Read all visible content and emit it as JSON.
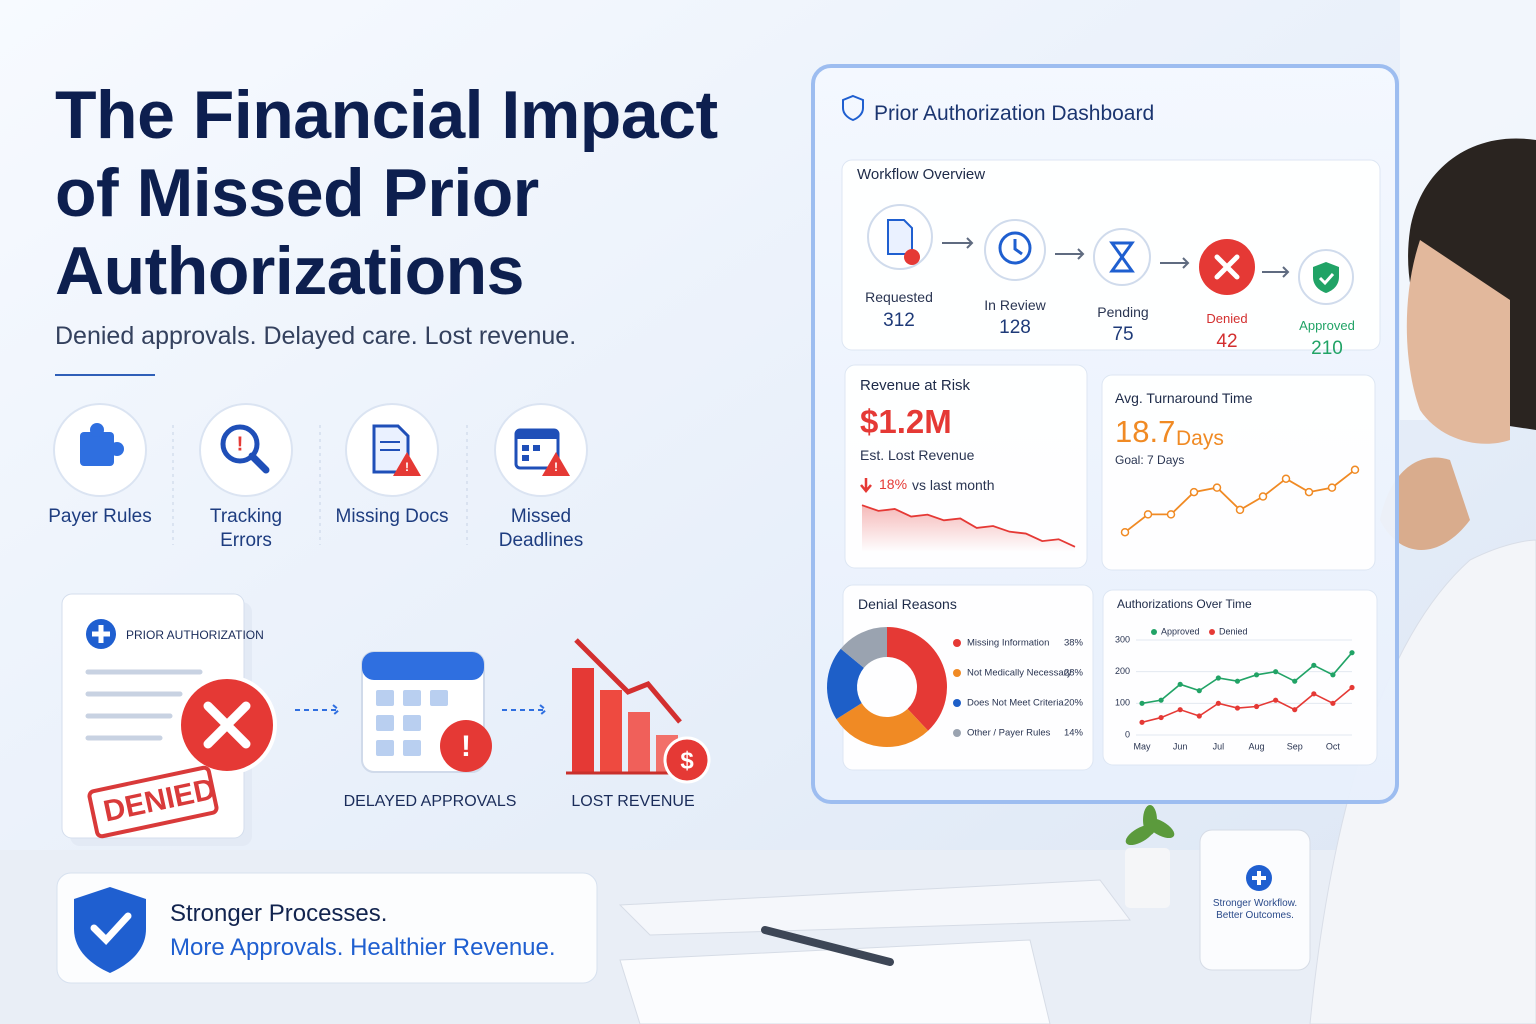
{
  "header": {
    "title": "The Financial Impact of Missed Prior Authorizations",
    "subtitle": "Denied approvals. Delayed care. Lost revenue."
  },
  "causes": [
    "Payer Rules",
    "Tracking Errors",
    "Missing Docs",
    "Missed Deadlines"
  ],
  "flow": {
    "document_title": "PRIOR AUTHORIZATION",
    "stamp": "DENIED",
    "steps": [
      "DELAYED APPROVALS",
      "LOST REVENUE"
    ]
  },
  "footer": {
    "line1": "Stronger Processes.",
    "line2": "More Approvals. Healthier Revenue."
  },
  "dashboard": {
    "title": "Prior Authorization Dashboard",
    "workflow_title": "Workflow Overview",
    "workflow": [
      {
        "label": "Requested",
        "value": 312
      },
      {
        "label": "In Review",
        "value": 128
      },
      {
        "label": "Pending",
        "value": 75
      },
      {
        "label": "Denied",
        "value": 42
      },
      {
        "label": "Approved",
        "value": 210
      }
    ],
    "revenue": {
      "title": "Revenue at Risk",
      "value": "$1.2M",
      "note": "Est. Lost Revenue",
      "change": "18%",
      "change_note": "vs last month"
    },
    "turnaround": {
      "title": "Avg. Turnaround Time",
      "value": "18.7",
      "unit": "Days",
      "goal": "Goal: 7 Days"
    }
  },
  "mug": "Stronger Workflow. Better Outcomes.",
  "chart_data": [
    {
      "type": "area",
      "values": [
        45,
        42,
        43,
        39,
        40,
        37,
        38,
        33,
        34,
        31,
        30,
        26,
        27,
        23
      ],
      "color": "#e53935"
    },
    {
      "type": "line",
      "values": [
        10,
        14,
        14,
        19,
        20,
        15,
        18,
        22,
        19,
        20,
        24
      ],
      "color": "#f08a24"
    },
    {
      "type": "pie",
      "title": "Denial Reasons",
      "categories": [
        "Missing Information",
        "Not Medically Necessary",
        "Does Not Meet Criteria",
        "Other / Payer Rules"
      ],
      "values": [
        38,
        28,
        20,
        14
      ],
      "value_labels": [
        "38%",
        "28%",
        "20%",
        "14%"
      ],
      "colors": [
        "#e53935",
        "#f08a24",
        "#1e5fc8",
        "#9aa3b0"
      ]
    },
    {
      "type": "line",
      "title": "Authorizations Over Time",
      "categories": [
        "May",
        null,
        "Jun",
        null,
        "Jul",
        null,
        "Aug",
        null,
        "Sep",
        null,
        "Oct",
        null
      ],
      "series": [
        {
          "name": "Approved",
          "color": "#21a366",
          "values": [
            100,
            110,
            160,
            140,
            180,
            170,
            190,
            200,
            170,
            220,
            190,
            260
          ]
        },
        {
          "name": "Denied",
          "color": "#e53935",
          "values": [
            40,
            55,
            80,
            60,
            100,
            85,
            90,
            110,
            80,
            130,
            100,
            150
          ]
        }
      ],
      "ylim": [
        0,
        300
      ],
      "yticks": [
        0,
        100,
        200,
        300
      ],
      "grid": true
    }
  ]
}
